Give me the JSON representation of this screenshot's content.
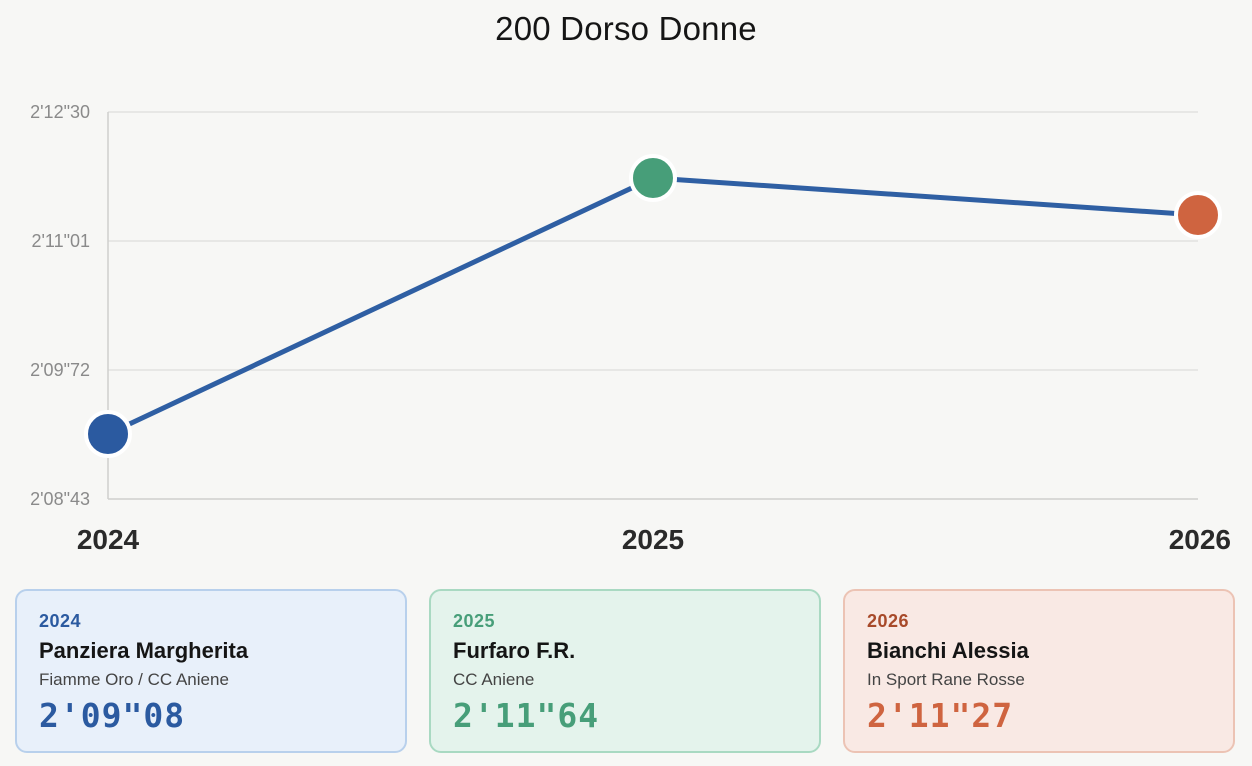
{
  "title": "200 Dorso Donne",
  "chart_data": {
    "type": "line",
    "title": "200 Dorso Donne",
    "x": [
      "2024",
      "2025",
      "2026"
    ],
    "y_seconds": [
      129.08,
      131.64,
      131.27
    ],
    "y_display": [
      "2'09\"08",
      "2'11\"64",
      "2'11\"27"
    ],
    "ylim_seconds": [
      128.43,
      132.3
    ],
    "yticks": [
      {
        "value": 128.43,
        "label": "2'08\"43"
      },
      {
        "value": 129.72,
        "label": "2'09\"72"
      },
      {
        "value": 131.01,
        "label": "2'11\"01"
      },
      {
        "value": 132.3,
        "label": "2'12\"30"
      }
    ],
    "grid": true,
    "line_color": "#2f5fa3",
    "point_colors": [
      "#2b5aa0",
      "#479e79",
      "#cf6440"
    ]
  },
  "cards": [
    {
      "year": "2024",
      "name": "Panziera Margherita",
      "club": "Fiamme Oro / CC Aniene",
      "time": "2'09\"08",
      "accent": "#2b5aa0",
      "bg": "#e8f0fa",
      "border": "#b8d0ec"
    },
    {
      "year": "2025",
      "name": "Furfaro F.R.",
      "club": "CC Aniene",
      "time": "2'11\"64",
      "accent": "#479e79",
      "bg": "#e4f3ec",
      "border": "#a9d9c2"
    },
    {
      "year": "2026",
      "name": "Bianchi Alessia",
      "club": "In Sport Rane Rosse",
      "time": "2'11\"27",
      "accent": "#cf6440",
      "bg": "#f9e9e4",
      "border": "#ecc3b4",
      "year_color": "#a84a2a"
    }
  ]
}
